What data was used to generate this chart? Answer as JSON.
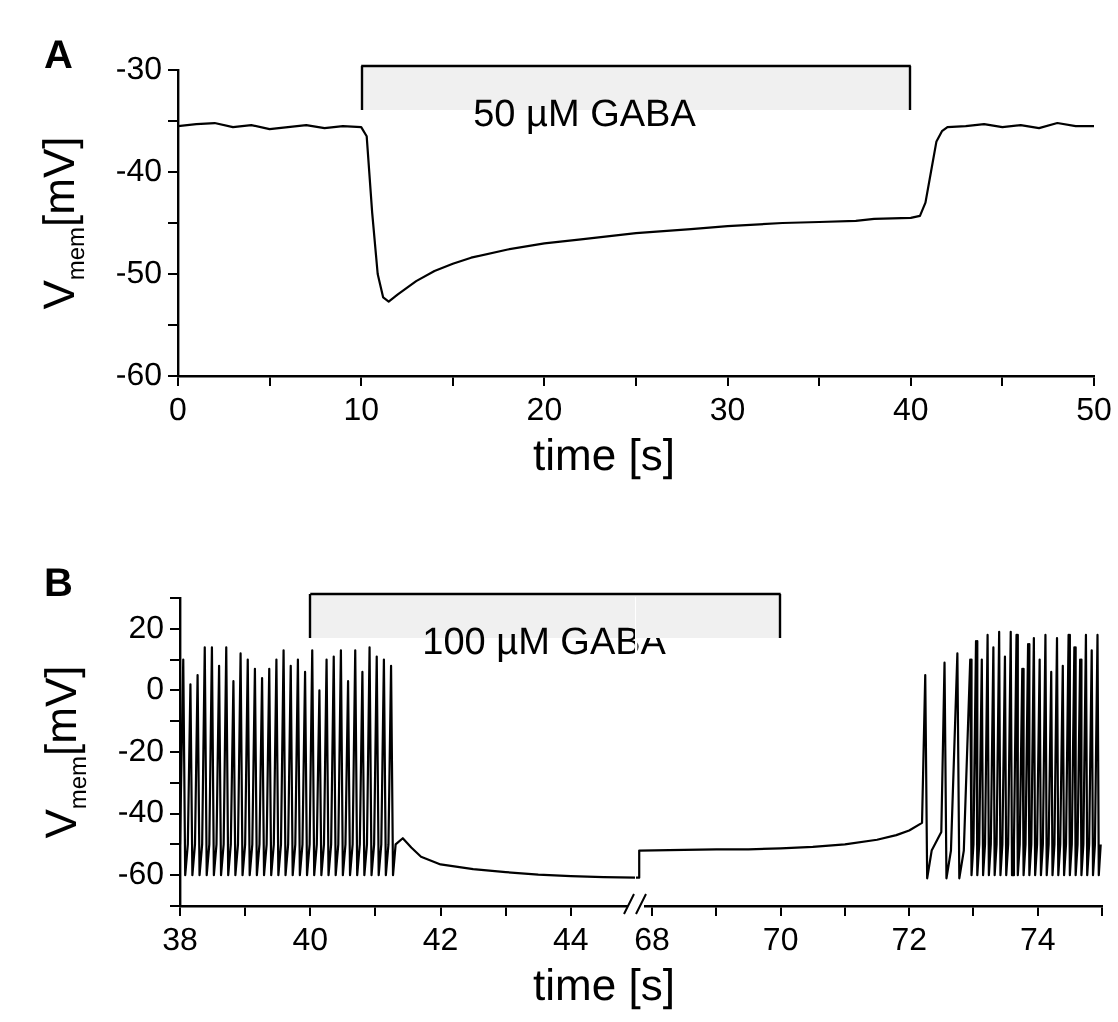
{
  "chart_data": [
    {
      "type": "line",
      "title": "A",
      "xlabel": "time [s]",
      "ylabel": "V$_{mem}$[mV]",
      "color": "#000000",
      "x": [
        0,
        1,
        2,
        3,
        4,
        5,
        6,
        7,
        8,
        9,
        10,
        10.3,
        10.6,
        10.9,
        11.2,
        11.5,
        12,
        13,
        14,
        15,
        16,
        18,
        20,
        22,
        25,
        28,
        30,
        33,
        35,
        37,
        38,
        40,
        40.5,
        40.8,
        41.1,
        41.4,
        41.7,
        42,
        43,
        44,
        45,
        46,
        47,
        48,
        49,
        50
      ],
      "values": [
        -35.5,
        -35.3,
        -35.2,
        -35.6,
        -35.4,
        -35.8,
        -35.6,
        -35.4,
        -35.7,
        -35.5,
        -35.6,
        -36.5,
        -44,
        -50,
        -52.3,
        -52.7,
        -52,
        -50.7,
        -49.7,
        -49,
        -48.4,
        -47.6,
        -47,
        -46.6,
        -46,
        -45.6,
        -45.3,
        -45,
        -44.9,
        -44.8,
        -44.6,
        -44.5,
        -44.3,
        -43,
        -40,
        -37,
        -36,
        -35.6,
        -35.5,
        -35.3,
        -35.6,
        -35.4,
        -35.7,
        -35.2,
        -35.5,
        -35.5
      ],
      "xlim": [
        0,
        50
      ],
      "xticks": [
        0,
        {
          "value": 5,
          "label": null
        },
        10,
        {
          "value": 15,
          "label": null
        },
        20,
        {
          "value": 25,
          "label": null
        },
        30,
        {
          "value": 35,
          "label": null
        },
        40,
        {
          "value": 45,
          "label": null
        },
        50
      ],
      "ylim": [
        -60,
        -30
      ],
      "yticks": [
        -60,
        {
          "value": -55,
          "label": null
        },
        -50,
        {
          "value": -45,
          "label": null
        },
        -40,
        {
          "value": -35,
          "label": null
        },
        -30
      ],
      "bands": [
        {
          "axis": "x",
          "from": 10,
          "to": 40,
          "label": "50 µM GABA",
          "color": "#f0f0f0"
        }
      ]
    },
    {
      "type": "line",
      "title": "B",
      "ylabel": "V$_{mem}$[mV]",
      "color": "#000000",
      "x": [
        38,
        38.05,
        38.08,
        38.12,
        38.16,
        38.19,
        38.23,
        38.27,
        38.3,
        38.34,
        38.38,
        38.41,
        38.45,
        38.49,
        38.52,
        38.56,
        38.6,
        38.63,
        38.67,
        38.71,
        38.74,
        38.78,
        38.82,
        38.85,
        38.89,
        38.93,
        38.96,
        39.0,
        39.04,
        39.07,
        39.11,
        39.15,
        39.18,
        39.22,
        39.26,
        39.29,
        39.33,
        39.37,
        39.4,
        39.44,
        39.48,
        39.51,
        39.55,
        39.59,
        39.62,
        39.66,
        39.7,
        39.73,
        39.77,
        39.81,
        39.84,
        39.88,
        39.92,
        39.95,
        39.99,
        40.03,
        40.06,
        40.1,
        40.14,
        40.17,
        40.21,
        40.25,
        40.28,
        40.32,
        40.36,
        40.39,
        40.43,
        40.47,
        40.5,
        40.54,
        40.58,
        40.61,
        40.65,
        40.69,
        40.72,
        40.76,
        40.8,
        40.83,
        40.87,
        40.91,
        40.94,
        40.98,
        41.02,
        41.05,
        41.09,
        41.13,
        41.16,
        41.2,
        41.24,
        41.27,
        41.31,
        41.42,
        41.55,
        41.7,
        42,
        42.5,
        43,
        43.5,
        44,
        44.5,
        45
      ],
      "values": [
        -50,
        10,
        -60,
        -50,
        2,
        -60,
        -50,
        5,
        -60,
        -50,
        14,
        -60,
        -50,
        14,
        -60,
        -50,
        8,
        -60,
        -50,
        14,
        -60,
        -50,
        3,
        -60,
        -50,
        12,
        -60,
        -50,
        10,
        -60,
        -50,
        7,
        -60,
        -50,
        4,
        -60,
        -50,
        7,
        -60,
        -50,
        10,
        -60,
        -50,
        13,
        -60,
        -50,
        8,
        -60,
        -50,
        10,
        -60,
        -50,
        6,
        -60,
        -50,
        13,
        -60,
        -50,
        0,
        -60,
        -50,
        10,
        -60,
        -50,
        11,
        -60,
        -50,
        13,
        -60,
        -50,
        3,
        -60,
        -50,
        13,
        -60,
        -50,
        6,
        -60,
        -50,
        14,
        -60,
        -50,
        11,
        -60,
        -50,
        10,
        -60,
        -50,
        8,
        -60,
        -50,
        -48,
        -51,
        -54,
        -56.5,
        -58,
        -59,
        -59.8,
        -60.3,
        -60.6,
        -60.8
      ],
      "xlim": [
        38,
        45
      ],
      "xticks": [
        38,
        {
          "value": 39,
          "label": null
        },
        40,
        {
          "value": 41,
          "label": null
        },
        42,
        {
          "value": 43,
          "label": null
        },
        44
      ],
      "ylim": [
        -70,
        30
      ],
      "yticks": [
        {
          "value": -70,
          "label": null
        },
        -60,
        {
          "value": -50,
          "label": null
        },
        -40,
        {
          "value": -30,
          "label": null
        },
        -20,
        {
          "value": -10,
          "label": null
        },
        0,
        {
          "value": 10,
          "label": null
        },
        20,
        {
          "value": 30,
          "label": null
        }
      ],
      "bands": [
        {
          "axis": "x",
          "from": 40,
          "to": 45,
          "label": "100 µM GABA",
          "color": "#f0f0f0"
        }
      ]
    },
    {
      "type": "line",
      "xlabel": "time [s]",
      "color": "#000000",
      "tick_labels": "x",
      "x": [
        67.75,
        67.8,
        67.8,
        68.5,
        69,
        69.5,
        70,
        70.5,
        71,
        71.5,
        71.8,
        72,
        72.2,
        72.25,
        72.28,
        72.35,
        72.5,
        72.55,
        72.58,
        72.65,
        72.75,
        72.78,
        72.85,
        72.95,
        72.97,
        73.0,
        73.04,
        73.06,
        73.09,
        73.13,
        73.15,
        73.18,
        73.22,
        73.24,
        73.27,
        73.31,
        73.33,
        73.36,
        73.4,
        73.42,
        73.45,
        73.49,
        73.51,
        73.54,
        73.58,
        73.6,
        73.63,
        73.67,
        73.69,
        73.72,
        73.76,
        73.78,
        73.81,
        73.85,
        73.87,
        73.9,
        73.94,
        73.96,
        73.99,
        74.03,
        74.05,
        74.08,
        74.12,
        74.14,
        74.17,
        74.21,
        74.23,
        74.26,
        74.3,
        74.32,
        74.35,
        74.39,
        74.41,
        74.44,
        74.48,
        74.5,
        74.53,
        74.57,
        74.59,
        74.62,
        74.66,
        74.68,
        74.71,
        74.75,
        74.77,
        74.8,
        74.84,
        74.86,
        74.89,
        74.93,
        74.95,
        74.98
      ],
      "values": [
        -60.8,
        -60.8,
        -52,
        -51.8,
        -51.6,
        -51.6,
        -51.3,
        -50.8,
        -50,
        -48.5,
        -47,
        -45.5,
        -43,
        5,
        -61,
        -52,
        -46,
        9,
        -61,
        -52,
        12,
        -61,
        -52,
        10,
        -60,
        -50,
        16,
        -60,
        -50,
        10,
        -60,
        -50,
        18,
        -60,
        -50,
        14,
        -60,
        -50,
        19,
        -60,
        -50,
        11,
        -60,
        -50,
        19,
        -60,
        -50,
        18,
        -60,
        -50,
        7,
        -60,
        -50,
        15,
        -60,
        -50,
        17,
        -60,
        -50,
        10,
        -60,
        -50,
        18,
        -60,
        -50,
        6,
        -60,
        -50,
        17,
        -60,
        -50,
        8,
        -60,
        -50,
        18,
        -60,
        -50,
        14,
        -60,
        -50,
        10,
        -60,
        -50,
        18,
        -60,
        -50,
        13,
        -60,
        -50,
        18,
        -60,
        -50
      ],
      "xlim": [
        67.75,
        75
      ],
      "xticks": [
        68,
        {
          "value": 69,
          "label": null
        },
        70,
        {
          "value": 71,
          "label": null
        },
        72,
        {
          "value": 73,
          "label": null
        },
        74,
        {
          "value": 75,
          "label": null
        }
      ],
      "ylim": [
        -70,
        30
      ],
      "bands": [
        {
          "axis": "x",
          "from": 67.75,
          "to": 70,
          "color": "#f0f0f0"
        }
      ]
    }
  ]
}
